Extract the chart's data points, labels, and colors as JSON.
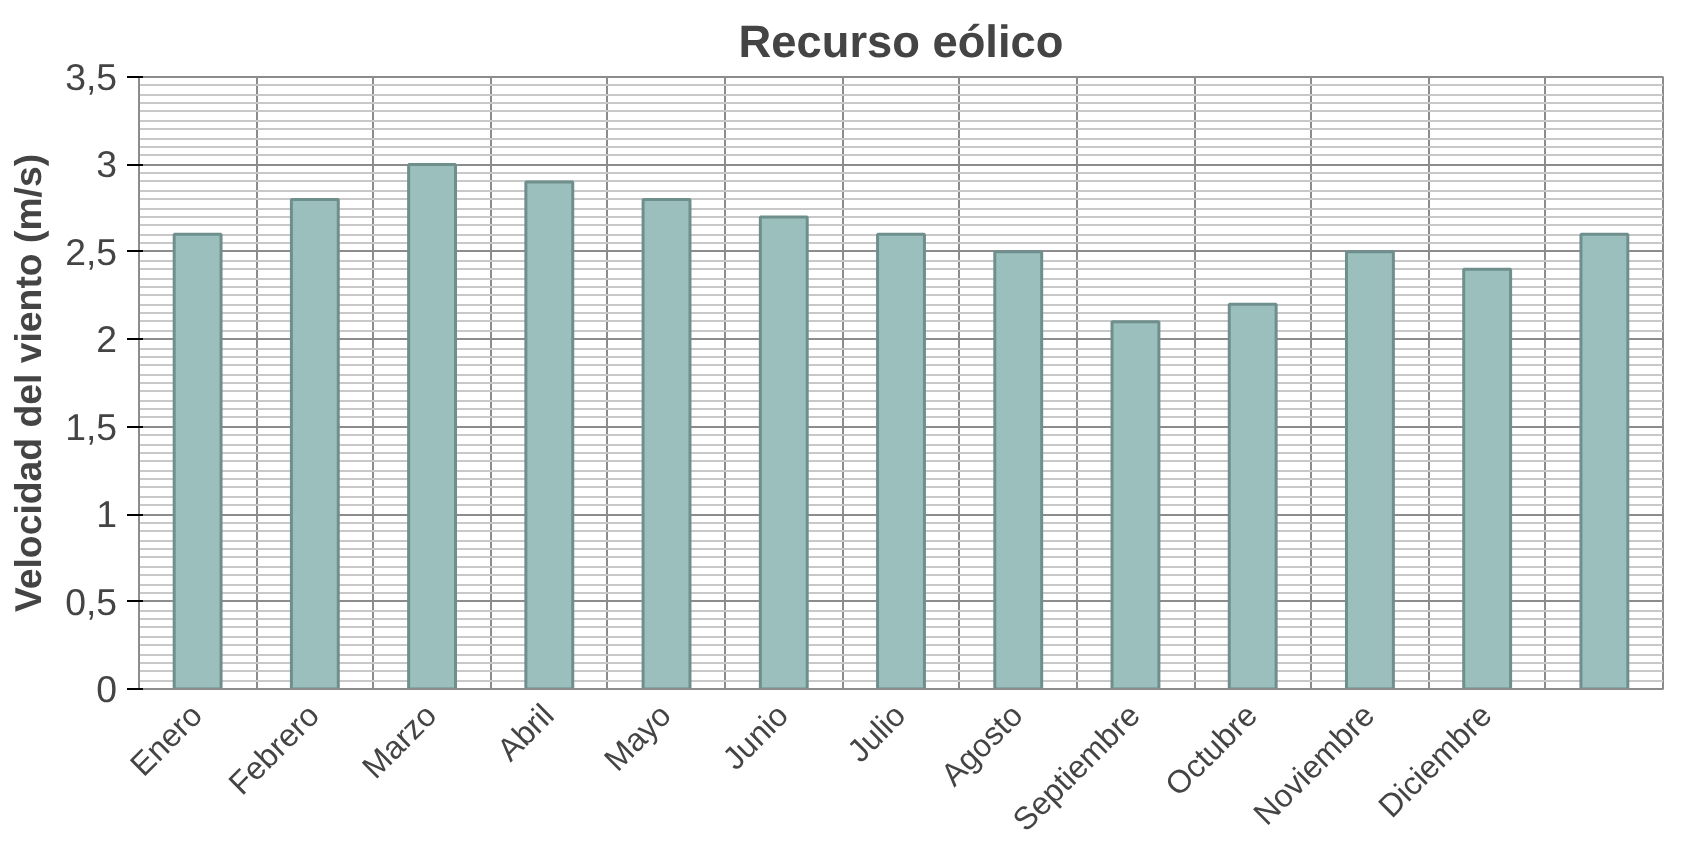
{
  "chart_data": {
    "type": "bar",
    "title": "Recurso eólico",
    "ylabel": "Velocidad del viento (m/s)",
    "categories": [
      "Enero",
      "Febrero",
      "Marzo",
      "Abril",
      "Mayo",
      "Junio",
      "Julio",
      "Agosto",
      "Septiembre",
      "Octubre",
      "Noviembre",
      "Diciembre",
      null
    ],
    "values": [
      2.6,
      2.8,
      3.0,
      2.9,
      2.8,
      2.7,
      2.6,
      2.5,
      2.1,
      2.2,
      2.5,
      2.4,
      2.6
    ],
    "color": "#9bbfbd",
    "ylim": [
      0,
      3.5
    ],
    "yticks": [
      0,
      {
        "value": 0.5,
        "label": "0,5"
      },
      1,
      {
        "value": 1.5,
        "label": "1,5"
      },
      2,
      {
        "value": 2.5,
        "label": "2,5"
      },
      3,
      {
        "value": 3.5,
        "label": "3,5"
      }
    ],
    "grid": true
  }
}
